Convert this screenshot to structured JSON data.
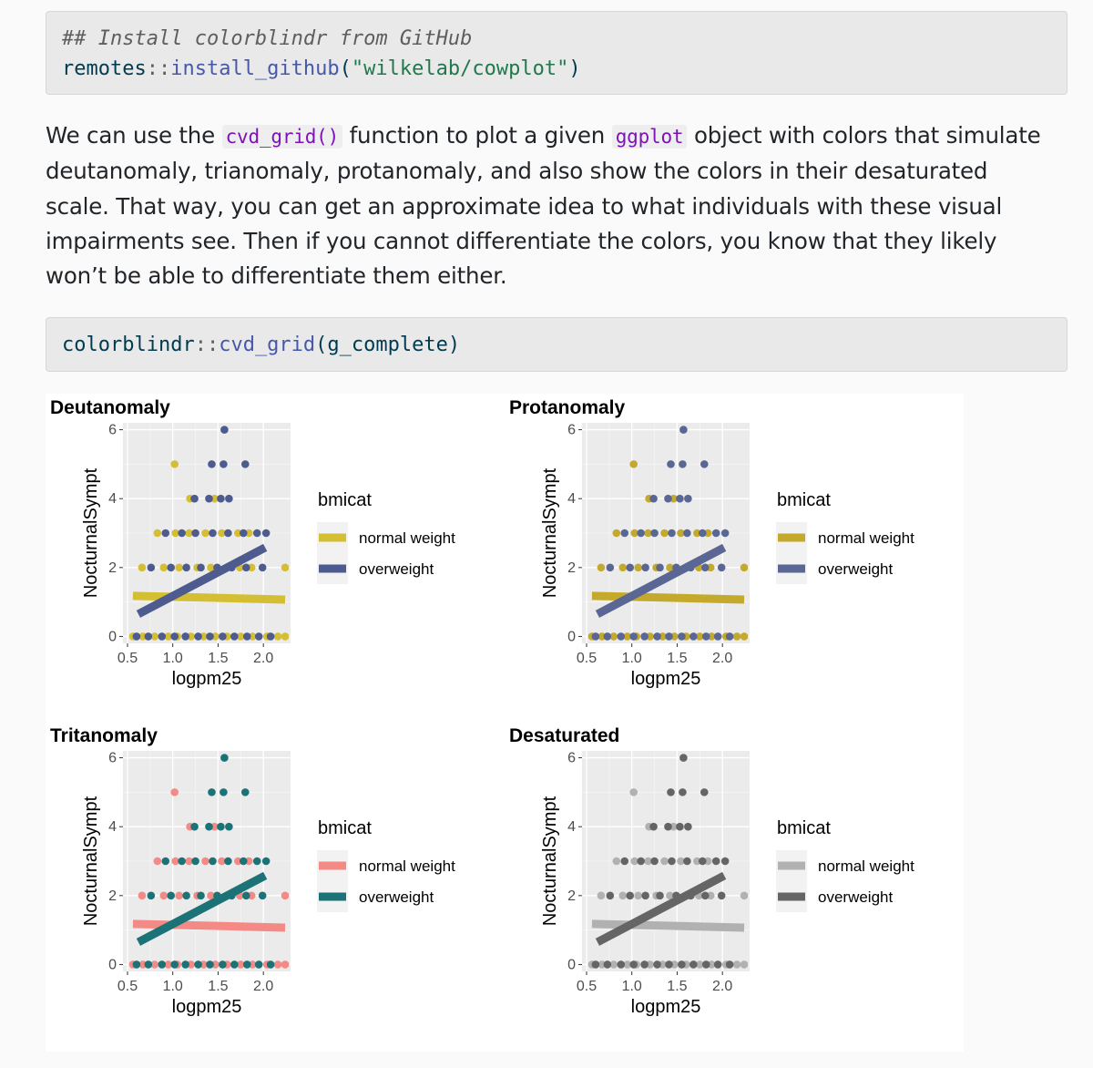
{
  "code_block_1": {
    "comment": "## Install colorblindr from GitHub",
    "namespace": "remotes",
    "operator": "::",
    "function": "install_github",
    "open_paren": "(",
    "argument": "\"wilkelab/cowplot\"",
    "close_paren": ")"
  },
  "prose": {
    "part1": "We can use the ",
    "code1": "cvd_grid()",
    "part2": " function to plot a given ",
    "code2": "ggplot",
    "part3": " object with colors that simulate deutanomaly, trianomaly, protanomaly, and also show the colors in their desaturated scale. That way, you can get an approximate idea to what individuals with these visual impairments see. Then if you cannot differentiate the colors, you know that they likely won’t be able to differentiate them either."
  },
  "code_block_2": {
    "namespace": "colorblindr",
    "operator": "::",
    "function": "cvd_grid",
    "open_paren": "(",
    "argument": "g_complete",
    "close_paren": ")"
  },
  "chart_data": [
    {
      "type": "scatter",
      "title": "Deutanomaly",
      "xlabel": "logpm25",
      "ylabel": "NocturnalSympt",
      "xlim": [
        0.45,
        2.3
      ],
      "ylim": [
        -0.2,
        6.2
      ],
      "xticks": [
        "0.5",
        "1.0",
        "1.5",
        "2.0"
      ],
      "yticks": [
        "0",
        "2",
        "4",
        "6"
      ],
      "grid": true,
      "legend_position": "right",
      "legend_title": "bmicat",
      "series": [
        {
          "name": "normal weight",
          "color": "#d4be33",
          "x": [
            0.56,
            0.67,
            0.8,
            0.95,
            1.05,
            1.2,
            1.34,
            1.47,
            1.6,
            1.75,
            1.88,
            2.04,
            2.16,
            2.24,
            0.66,
            0.9,
            1.07,
            1.27,
            1.42,
            1.6,
            1.74,
            1.87,
            2.24,
            0.83,
            1.03,
            1.18,
            1.36,
            1.54,
            1.72,
            1.84,
            1.19,
            1.46,
            1.02
          ],
          "y": [
            0,
            0,
            0,
            0,
            0,
            0,
            0,
            0,
            0,
            0,
            0,
            0,
            0,
            0,
            2,
            2,
            2,
            2,
            2,
            2,
            2,
            2,
            2,
            3,
            3,
            3,
            3,
            3,
            3,
            3,
            4,
            4,
            5
          ],
          "smooth": [
            [
              0.56,
              1.18
            ],
            [
              2.24,
              1.07
            ]
          ]
        },
        {
          "name": "overweight",
          "color": "#4e5b8f",
          "x": [
            0.6,
            0.73,
            0.88,
            1.02,
            1.14,
            1.28,
            1.41,
            1.55,
            1.68,
            1.82,
            1.95,
            2.08,
            0.76,
            0.98,
            1.15,
            1.31,
            1.49,
            1.65,
            1.81,
            1.99,
            0.92,
            1.1,
            1.25,
            1.44,
            1.61,
            1.78,
            1.93,
            2.03,
            1.24,
            1.4,
            1.53,
            1.62,
            1.43,
            1.56,
            1.8,
            1.57
          ],
          "y": [
            0,
            0,
            0,
            0,
            0,
            0,
            0,
            0,
            0,
            0,
            0,
            0,
            2,
            2,
            2,
            2,
            2,
            2,
            2,
            2,
            3,
            3,
            3,
            3,
            3,
            3,
            3,
            3,
            4,
            4,
            4,
            4,
            5,
            5,
            5,
            6
          ],
          "smooth": [
            [
              0.62,
              0.65
            ],
            [
              2.02,
              2.58
            ]
          ]
        }
      ]
    },
    {
      "type": "scatter",
      "title": "Protanomaly",
      "xlabel": "logpm25",
      "ylabel": "NocturnalSympt",
      "xlim": [
        0.45,
        2.3
      ],
      "ylim": [
        -0.2,
        6.2
      ],
      "xticks": [
        "0.5",
        "1.0",
        "1.5",
        "2.0"
      ],
      "yticks": [
        "0",
        "2",
        "4",
        "6"
      ],
      "grid": true,
      "legend_position": "right",
      "legend_title": "bmicat",
      "series": [
        {
          "name": "normal weight",
          "color": "#c4aa2c",
          "x": [
            0.56,
            0.67,
            0.8,
            0.95,
            1.05,
            1.2,
            1.34,
            1.47,
            1.6,
            1.75,
            1.88,
            2.04,
            2.16,
            2.24,
            0.66,
            0.9,
            1.07,
            1.27,
            1.42,
            1.6,
            1.74,
            1.87,
            2.24,
            0.83,
            1.03,
            1.18,
            1.36,
            1.54,
            1.72,
            1.84,
            1.19,
            1.46,
            1.02
          ],
          "y": [
            0,
            0,
            0,
            0,
            0,
            0,
            0,
            0,
            0,
            0,
            0,
            0,
            0,
            0,
            2,
            2,
            2,
            2,
            2,
            2,
            2,
            2,
            2,
            3,
            3,
            3,
            3,
            3,
            3,
            3,
            4,
            4,
            5
          ],
          "smooth": [
            [
              0.56,
              1.18
            ],
            [
              2.24,
              1.07
            ]
          ]
        },
        {
          "name": "overweight",
          "color": "#5a6694",
          "x": [
            0.6,
            0.73,
            0.88,
            1.02,
            1.14,
            1.28,
            1.41,
            1.55,
            1.68,
            1.82,
            1.95,
            2.08,
            0.76,
            0.98,
            1.15,
            1.31,
            1.49,
            1.65,
            1.81,
            1.99,
            0.92,
            1.1,
            1.25,
            1.44,
            1.61,
            1.78,
            1.93,
            2.03,
            1.24,
            1.4,
            1.53,
            1.62,
            1.43,
            1.56,
            1.8,
            1.57
          ],
          "y": [
            0,
            0,
            0,
            0,
            0,
            0,
            0,
            0,
            0,
            0,
            0,
            0,
            2,
            2,
            2,
            2,
            2,
            2,
            2,
            2,
            3,
            3,
            3,
            3,
            3,
            3,
            3,
            3,
            4,
            4,
            4,
            4,
            5,
            5,
            5,
            6
          ],
          "smooth": [
            [
              0.62,
              0.65
            ],
            [
              2.02,
              2.58
            ]
          ]
        }
      ]
    },
    {
      "type": "scatter",
      "title": "Tritanomaly",
      "xlabel": "logpm25",
      "ylabel": "NocturnalSympt",
      "xlim": [
        0.45,
        2.3
      ],
      "ylim": [
        -0.2,
        6.2
      ],
      "xticks": [
        "0.5",
        "1.0",
        "1.5",
        "2.0"
      ],
      "yticks": [
        "0",
        "2",
        "4",
        "6"
      ],
      "grid": true,
      "legend_position": "right",
      "legend_title": "bmicat",
      "series": [
        {
          "name": "normal weight",
          "color": "#f48a85",
          "x": [
            0.56,
            0.67,
            0.8,
            0.95,
            1.05,
            1.2,
            1.34,
            1.47,
            1.6,
            1.75,
            1.88,
            2.04,
            2.16,
            2.24,
            0.66,
            0.9,
            1.07,
            1.27,
            1.42,
            1.6,
            1.74,
            1.87,
            2.24,
            0.83,
            1.03,
            1.18,
            1.36,
            1.54,
            1.72,
            1.84,
            1.19,
            1.46,
            1.02
          ],
          "y": [
            0,
            0,
            0,
            0,
            0,
            0,
            0,
            0,
            0,
            0,
            0,
            0,
            0,
            0,
            2,
            2,
            2,
            2,
            2,
            2,
            2,
            2,
            2,
            3,
            3,
            3,
            3,
            3,
            3,
            3,
            4,
            4,
            5
          ],
          "smooth": [
            [
              0.56,
              1.18
            ],
            [
              2.24,
              1.07
            ]
          ]
        },
        {
          "name": "overweight",
          "color": "#1b7377",
          "x": [
            0.6,
            0.73,
            0.88,
            1.02,
            1.14,
            1.28,
            1.41,
            1.55,
            1.68,
            1.82,
            1.95,
            2.08,
            0.76,
            0.98,
            1.15,
            1.31,
            1.49,
            1.65,
            1.81,
            1.99,
            0.92,
            1.1,
            1.25,
            1.44,
            1.61,
            1.78,
            1.93,
            2.03,
            1.24,
            1.4,
            1.53,
            1.62,
            1.43,
            1.56,
            1.8,
            1.57
          ],
          "y": [
            0,
            0,
            0,
            0,
            0,
            0,
            0,
            0,
            0,
            0,
            0,
            0,
            2,
            2,
            2,
            2,
            2,
            2,
            2,
            2,
            3,
            3,
            3,
            3,
            3,
            3,
            3,
            3,
            4,
            4,
            4,
            4,
            5,
            5,
            5,
            6
          ],
          "smooth": [
            [
              0.62,
              0.65
            ],
            [
              2.02,
              2.58
            ]
          ]
        }
      ]
    },
    {
      "type": "scatter",
      "title": "Desaturated",
      "xlabel": "logpm25",
      "ylabel": "NocturnalSympt",
      "xlim": [
        0.45,
        2.3
      ],
      "ylim": [
        -0.2,
        6.2
      ],
      "xticks": [
        "0.5",
        "1.0",
        "1.5",
        "2.0"
      ],
      "yticks": [
        "0",
        "2",
        "4",
        "6"
      ],
      "grid": true,
      "legend_position": "right",
      "legend_title": "bmicat",
      "series": [
        {
          "name": "normal weight",
          "color": "#b1b1b1",
          "x": [
            0.56,
            0.67,
            0.8,
            0.95,
            1.05,
            1.2,
            1.34,
            1.47,
            1.6,
            1.75,
            1.88,
            2.04,
            2.16,
            2.24,
            0.66,
            0.9,
            1.07,
            1.27,
            1.42,
            1.6,
            1.74,
            1.87,
            2.24,
            0.83,
            1.03,
            1.18,
            1.36,
            1.54,
            1.72,
            1.84,
            1.19,
            1.46,
            1.02
          ],
          "y": [
            0,
            0,
            0,
            0,
            0,
            0,
            0,
            0,
            0,
            0,
            0,
            0,
            0,
            0,
            2,
            2,
            2,
            2,
            2,
            2,
            2,
            2,
            2,
            3,
            3,
            3,
            3,
            3,
            3,
            3,
            4,
            4,
            5
          ],
          "smooth": [
            [
              0.56,
              1.18
            ],
            [
              2.24,
              1.07
            ]
          ]
        },
        {
          "name": "overweight",
          "color": "#656565",
          "x": [
            0.6,
            0.73,
            0.88,
            1.02,
            1.14,
            1.28,
            1.41,
            1.55,
            1.68,
            1.82,
            1.95,
            2.08,
            0.76,
            0.98,
            1.15,
            1.31,
            1.49,
            1.65,
            1.81,
            1.99,
            0.92,
            1.1,
            1.25,
            1.44,
            1.61,
            1.78,
            1.93,
            2.03,
            1.24,
            1.4,
            1.53,
            1.62,
            1.43,
            1.56,
            1.8,
            1.57
          ],
          "y": [
            0,
            0,
            0,
            0,
            0,
            0,
            0,
            0,
            0,
            0,
            0,
            0,
            2,
            2,
            2,
            2,
            2,
            2,
            2,
            2,
            3,
            3,
            3,
            3,
            3,
            3,
            3,
            3,
            4,
            4,
            4,
            4,
            5,
            5,
            5,
            6
          ],
          "smooth": [
            [
              0.62,
              0.65
            ],
            [
              2.02,
              2.58
            ]
          ]
        }
      ]
    }
  ]
}
